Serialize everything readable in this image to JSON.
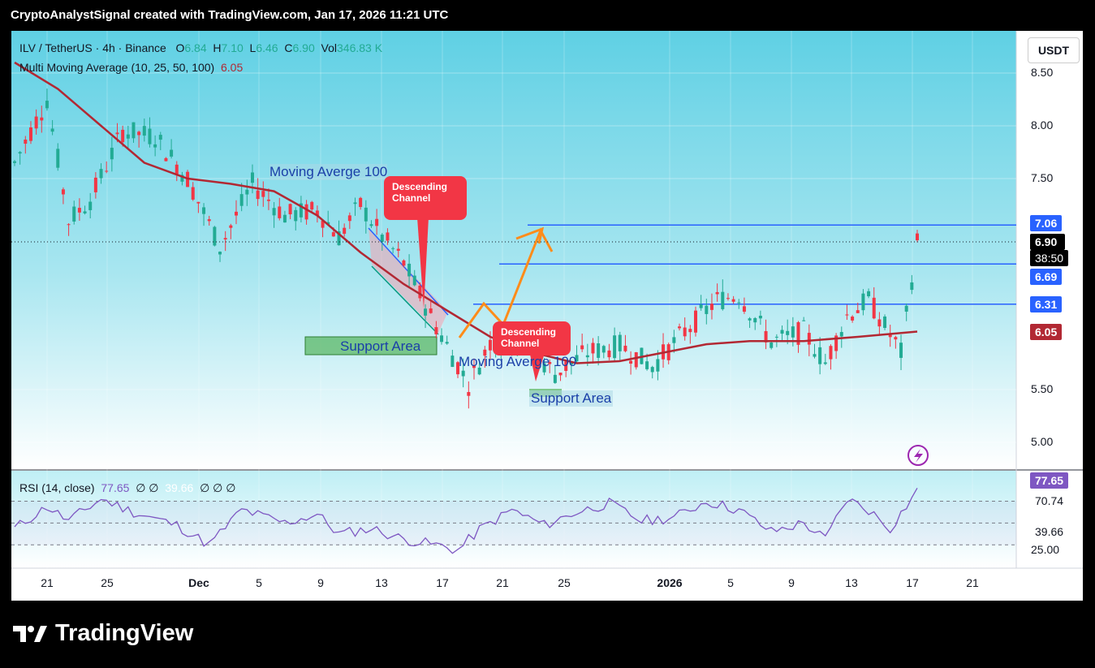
{
  "header": {
    "text": "CryptoAnalystSignal created with TradingView.com, Jan 17, 2026 11:21 UTC"
  },
  "legend": {
    "symbol": "ILV / TetherUS · 4h · Binance",
    "o_label": "O",
    "o": "6.84",
    "h_label": "H",
    "h": "7.10",
    "l_label": "L",
    "l": "6.46",
    "c_label": "C",
    "c": "6.90",
    "vol_label": "Vol",
    "vol": "346.83 K",
    "mma_label": "Multi Moving Average (10, 25, 50, 100)",
    "mma_value": "6.05",
    "rsi_label": "RSI (14, close)",
    "rsi_value": "77.65",
    "rsi_rest_a": "∅ ∅",
    "rsi_value2": "39.66",
    "rsi_rest_b": "∅ ∅ ∅"
  },
  "currency_button": "USDT",
  "price_tags": {
    "level_706": "7.06",
    "last_price": "6.90",
    "countdown": "38:50",
    "level_669": "6.69",
    "level_631": "6.31",
    "ma_value": "6.05",
    "rsi_current": "77.65",
    "rsi_7074": "70.74",
    "rsi_3966": "39.66"
  },
  "annotations": {
    "ma100_top": "Moving Averge 100",
    "ma100_mid": "Moving Averge 100",
    "support_left": "Support Area",
    "support_mid": "Support Area",
    "descending_1a": "Descending",
    "descending_1b": "Channel",
    "descending_2a": "Descending",
    "descending_2b": "Channel"
  },
  "logo": "TradingView",
  "colors": {
    "up": "#22ab94",
    "down": "#f23645",
    "ma": "#b22833",
    "line": "#2962ff",
    "arrow": "#ff8c1a",
    "rsi": "#7e57c2"
  },
  "chart_data": {
    "type": "candlestick",
    "ylim": [
      4.8,
      8.85
    ],
    "y_ticks": [
      "8.50",
      "8.00",
      "7.50",
      "5.50",
      "5.00"
    ],
    "x_ticks": [
      "21",
      "25",
      "Dec",
      "5",
      "9",
      "13",
      "17",
      "21",
      "25",
      "2026",
      "5",
      "9",
      "13",
      "17",
      "21"
    ],
    "rsi_ticks": [
      "25.00"
    ],
    "horizontal_levels": [
      7.06,
      6.69,
      6.31
    ],
    "price_path": [
      [
        0,
        7.65
      ],
      [
        6,
        8.25
      ],
      [
        10,
        7.1
      ],
      [
        14,
        7.3
      ],
      [
        20,
        7.95
      ],
      [
        26,
        7.9
      ],
      [
        32,
        7.5
      ],
      [
        38,
        6.85
      ],
      [
        44,
        7.45
      ],
      [
        50,
        7.15
      ],
      [
        56,
        7.2
      ],
      [
        60,
        6.95
      ],
      [
        64,
        7.25
      ],
      [
        68,
        6.95
      ],
      [
        72,
        6.7
      ],
      [
        78,
        6.1
      ],
      [
        84,
        5.55
      ],
      [
        88,
        5.95
      ],
      [
        94,
        5.95
      ],
      [
        100,
        5.65
      ],
      [
        106,
        5.85
      ],
      [
        112,
        5.92
      ],
      [
        118,
        5.72
      ],
      [
        124,
        6.05
      ],
      [
        130,
        6.35
      ],
      [
        134,
        6.4
      ],
      [
        140,
        5.95
      ],
      [
        146,
        6.05
      ],
      [
        150,
        5.75
      ],
      [
        154,
        6.2
      ],
      [
        158,
        6.35
      ],
      [
        164,
        5.85
      ],
      [
        167,
        6.9
      ]
    ],
    "ma100_path": [
      [
        0,
        8.6
      ],
      [
        8,
        8.35
      ],
      [
        16,
        8.0
      ],
      [
        24,
        7.65
      ],
      [
        32,
        7.5
      ],
      [
        40,
        7.45
      ],
      [
        48,
        7.38
      ],
      [
        56,
        7.15
      ],
      [
        64,
        6.8
      ],
      [
        72,
        6.5
      ],
      [
        80,
        6.25
      ],
      [
        88,
        6.0
      ],
      [
        96,
        5.85
      ],
      [
        104,
        5.75
      ],
      [
        112,
        5.77
      ],
      [
        120,
        5.85
      ],
      [
        128,
        5.93
      ],
      [
        136,
        5.96
      ],
      [
        146,
        5.96
      ],
      [
        156,
        6.0
      ],
      [
        167,
        6.05
      ]
    ],
    "rsi_path": [
      [
        0,
        45
      ],
      [
        6,
        65
      ],
      [
        10,
        52
      ],
      [
        16,
        72
      ],
      [
        22,
        60
      ],
      [
        30,
        48
      ],
      [
        36,
        30
      ],
      [
        42,
        62
      ],
      [
        50,
        50
      ],
      [
        56,
        58
      ],
      [
        60,
        40
      ],
      [
        66,
        45
      ],
      [
        72,
        35
      ],
      [
        78,
        30
      ],
      [
        82,
        25
      ],
      [
        86,
        44
      ],
      [
        92,
        62
      ],
      [
        98,
        48
      ],
      [
        104,
        60
      ],
      [
        110,
        68
      ],
      [
        116,
        52
      ],
      [
        122,
        55
      ],
      [
        128,
        70
      ],
      [
        134,
        62
      ],
      [
        140,
        42
      ],
      [
        146,
        50
      ],
      [
        150,
        35
      ],
      [
        154,
        72
      ],
      [
        158,
        62
      ],
      [
        162,
        45
      ],
      [
        167,
        80
      ]
    ]
  }
}
